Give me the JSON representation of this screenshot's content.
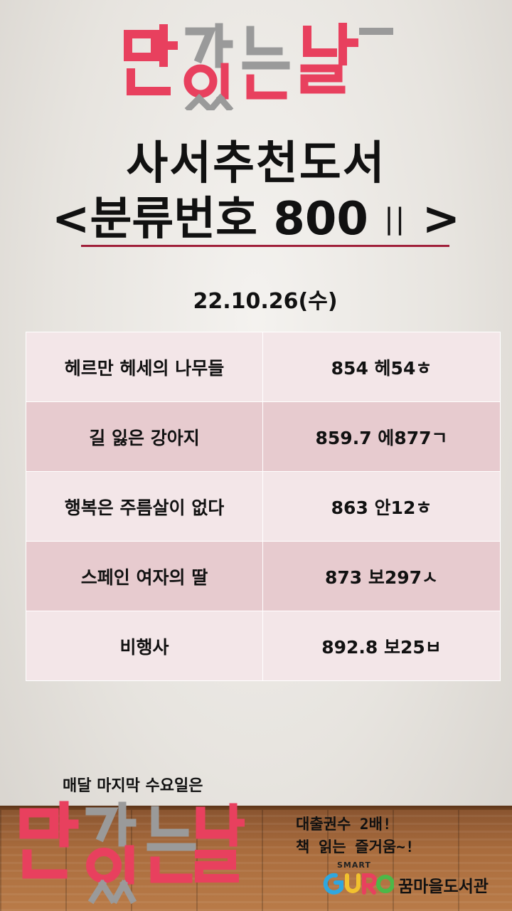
{
  "header": {
    "logo_text": "만가있는날"
  },
  "title": {
    "line1": "사서추천도서",
    "line2_open": "<",
    "line2_main": "분류번호 800",
    "line2_mark": "||",
    "line2_close": ">"
  },
  "date": "22.10.26(수)",
  "books": [
    {
      "title": "헤르만 헤세의 나무들",
      "call_number": "854 헤54ㅎ"
    },
    {
      "title": "길 잃은 강아지",
      "call_number": "859.7 에877ㄱ"
    },
    {
      "title": "행복은 주름살이 없다",
      "call_number": "863 안12ㅎ"
    },
    {
      "title": "스페인 여자의 딸",
      "call_number": "873 보297ㅅ"
    },
    {
      "title": "비행사",
      "call_number": "892.8 보25ㅂ"
    }
  ],
  "footer": {
    "monthly_text": "매달 마지막 수요일은",
    "logo_text": "만가있는날",
    "promo_line1": "대출권수 2배!",
    "promo_line2": "책 읽는 즐거움~!",
    "smart_label": "SMART",
    "guro_label": "GURO",
    "library_name": "꿈마을도서관"
  },
  "colors": {
    "accent": "#e8405e",
    "logo_gray": "#9a9a9a",
    "underline": "#a0203a",
    "row_light": "#f3e6e8",
    "row_dark": "#e7cbcf"
  }
}
